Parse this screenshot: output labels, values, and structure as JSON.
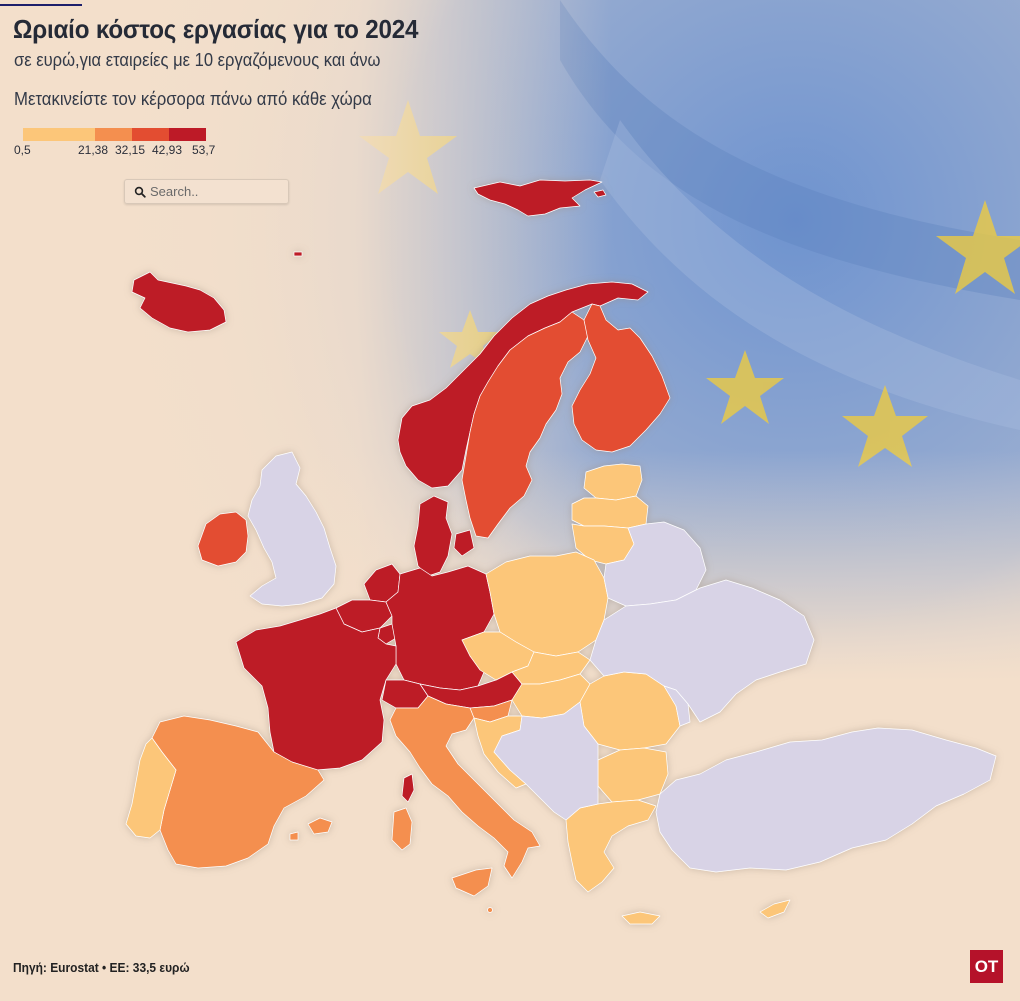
{
  "title": "Ωριαίο κόστος εργασίας για το 2024",
  "subtitle": "σε ευρώ,για εταιρείες με 10 εργαζόμενους και άνω",
  "instruction": "Μετακινείστε τον κέρσορα πάνω από κάθε χώρα",
  "legend": {
    "breaks": [
      "0,5",
      "21,38",
      "32,15",
      "42,93",
      "53,7"
    ],
    "colors": [
      "#fcc679",
      "#f48f4f",
      "#e34d31",
      "#bd1a27"
    ],
    "no_data_color": "#d8d3e6"
  },
  "search": {
    "placeholder": "Search..",
    "icon": "search-icon"
  },
  "source": "Πηγή: Eurostat • ΕΕ: 33,5 ευρώ",
  "logo": {
    "text": "OT",
    "color": "#b5122a"
  },
  "background": {
    "flag_blue": "#6e93cf",
    "star_yellow": "#f3cd3a",
    "paper": "#f3dfcb"
  },
  "countries": [
    {
      "id": "svalbard",
      "class": 3
    },
    {
      "id": "iceland",
      "class": 3
    },
    {
      "id": "norway",
      "class": 3
    },
    {
      "id": "sweden",
      "class": 2
    },
    {
      "id": "finland",
      "class": 2
    },
    {
      "id": "estonia",
      "class": 0
    },
    {
      "id": "latvia",
      "class": 0
    },
    {
      "id": "lithuania",
      "class": 0
    },
    {
      "id": "denmark",
      "class": 3
    },
    {
      "id": "ireland",
      "class": 2
    },
    {
      "id": "united-kingdom",
      "class": null
    },
    {
      "id": "netherlands",
      "class": 3
    },
    {
      "id": "belgium",
      "class": 3
    },
    {
      "id": "luxembourg",
      "class": 3
    },
    {
      "id": "germany",
      "class": 3
    },
    {
      "id": "france",
      "class": 3
    },
    {
      "id": "switzerland",
      "class": 3
    },
    {
      "id": "austria",
      "class": 3
    },
    {
      "id": "poland",
      "class": 0
    },
    {
      "id": "czechia",
      "class": 0
    },
    {
      "id": "slovakia",
      "class": 0
    },
    {
      "id": "hungary",
      "class": 0
    },
    {
      "id": "slovenia",
      "class": 1
    },
    {
      "id": "croatia",
      "class": 0
    },
    {
      "id": "romania",
      "class": 0
    },
    {
      "id": "bulgaria",
      "class": 0
    },
    {
      "id": "greece",
      "class": 0
    },
    {
      "id": "cyprus",
      "class": 0
    },
    {
      "id": "italy",
      "class": 1
    },
    {
      "id": "sardinia",
      "class": 1
    },
    {
      "id": "corsica",
      "class": 3
    },
    {
      "id": "spain",
      "class": 1
    },
    {
      "id": "balearic-islands",
      "class": 1
    },
    {
      "id": "portugal",
      "class": 0
    },
    {
      "id": "belarus",
      "class": null
    },
    {
      "id": "ukraine",
      "class": null
    },
    {
      "id": "moldova",
      "class": null
    },
    {
      "id": "western-balkans",
      "class": null
    },
    {
      "id": "turkey",
      "class": null
    }
  ]
}
